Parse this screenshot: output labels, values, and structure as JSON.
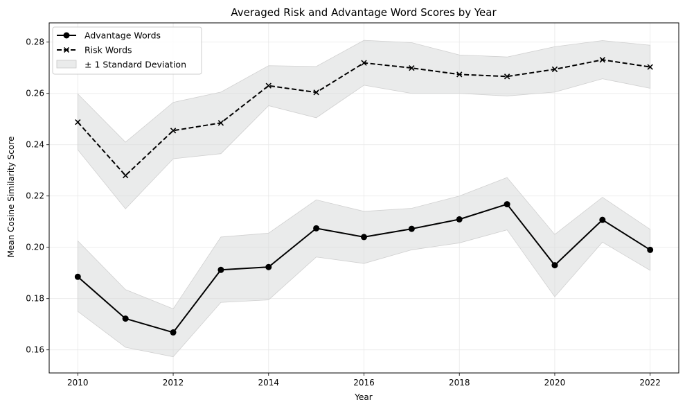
{
  "chart_data": {
    "type": "line",
    "title": "Averaged Risk and Advantage Word Scores by Year",
    "xlabel": "Year",
    "ylabel": "Mean Cosine Similarity Score",
    "x": [
      2010,
      2011,
      2012,
      2013,
      2014,
      2015,
      2016,
      2017,
      2018,
      2019,
      2020,
      2021,
      2022
    ],
    "xlim": [
      2009.4,
      2022.6
    ],
    "ylim": [
      0.151,
      0.2875
    ],
    "xticks": [
      2010,
      2012,
      2014,
      2016,
      2018,
      2020,
      2022
    ],
    "yticks": [
      0.16,
      0.18,
      0.2,
      0.22,
      0.24,
      0.26,
      0.28
    ],
    "ytick_labels": [
      "0.16",
      "0.18",
      "0.20",
      "0.22",
      "0.24",
      "0.26",
      "0.28"
    ],
    "grid": true,
    "legend_position": "top-left",
    "band_label": "± 1 Standard Deviation",
    "band_color": "#d5d8d8",
    "series": [
      {
        "name": "Advantage Words",
        "style": "solid",
        "marker": "circle",
        "color": "#000000",
        "values": [
          0.1885,
          0.1722,
          0.1668,
          0.1912,
          0.1923,
          0.2074,
          0.204,
          0.2072,
          0.2109,
          0.2168,
          0.193,
          0.2107,
          0.199
        ],
        "std_low": [
          0.175,
          0.161,
          0.1573,
          0.1785,
          0.1795,
          0.1962,
          0.1937,
          0.199,
          0.2017,
          0.2068,
          0.1807,
          0.202,
          0.191
        ],
        "std_high": [
          0.2025,
          0.1835,
          0.176,
          0.204,
          0.2055,
          0.2185,
          0.214,
          0.2152,
          0.22,
          0.2272,
          0.205,
          0.2195,
          0.207
        ]
      },
      {
        "name": "Risk Words",
        "style": "dashed",
        "marker": "x",
        "color": "#000000",
        "values": [
          0.2488,
          0.228,
          0.2455,
          0.2485,
          0.263,
          0.2604,
          0.2719,
          0.2699,
          0.2674,
          0.2666,
          0.2694,
          0.2731,
          0.2703
        ],
        "std_low": [
          0.238,
          0.215,
          0.2345,
          0.2365,
          0.2552,
          0.2505,
          0.2632,
          0.26,
          0.26,
          0.259,
          0.2605,
          0.2657,
          0.262
        ],
        "std_high": [
          0.2598,
          0.241,
          0.2565,
          0.2605,
          0.2708,
          0.2705,
          0.2807,
          0.2798,
          0.275,
          0.2742,
          0.2782,
          0.2806,
          0.2788
        ]
      }
    ]
  }
}
